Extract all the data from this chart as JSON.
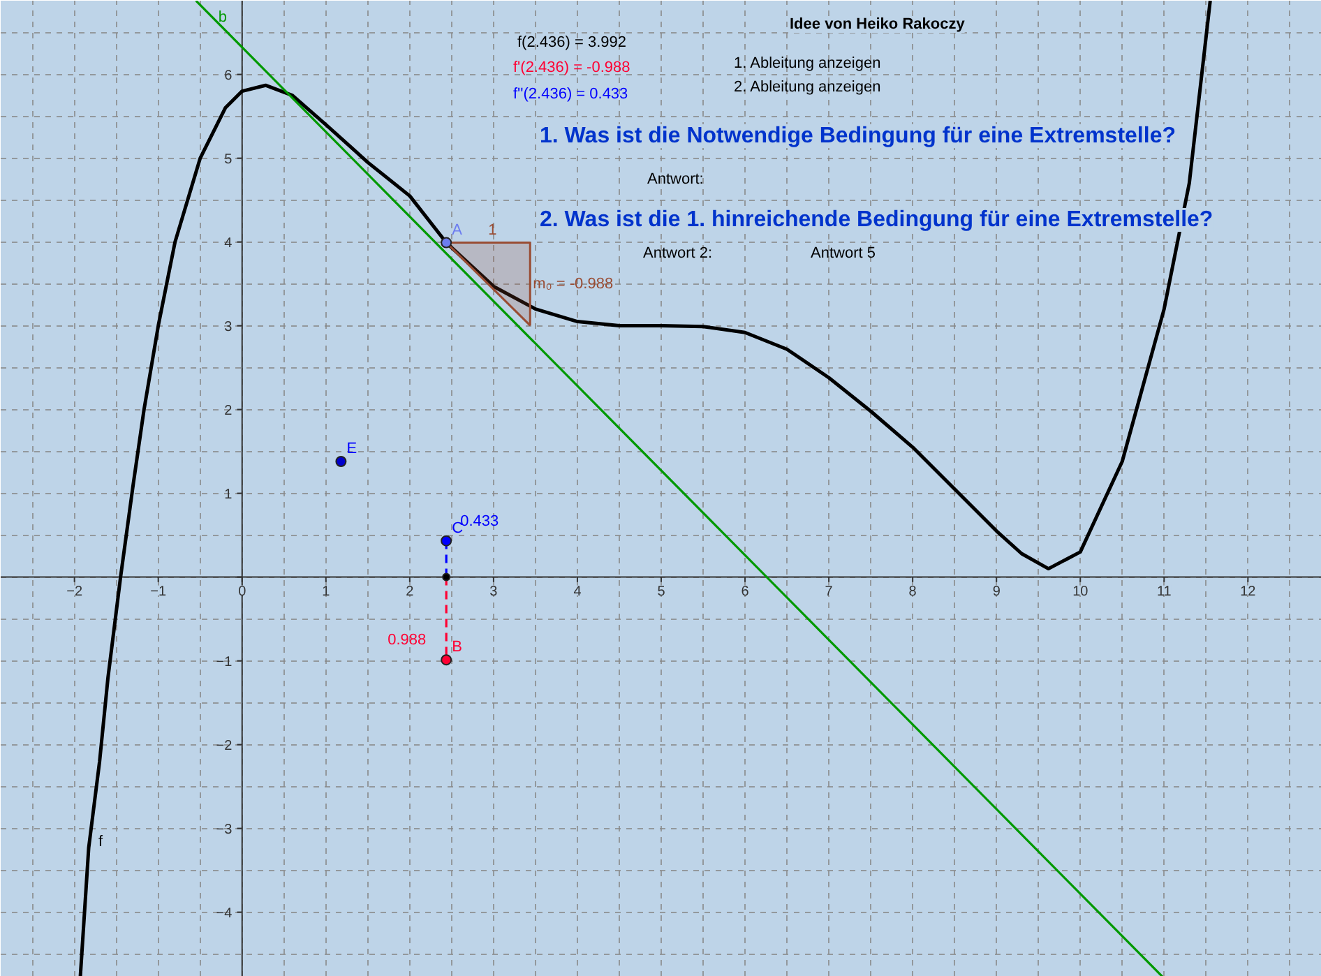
{
  "chart_data": {
    "type": "line",
    "xlim": [
      -2.88,
      12.88
    ],
    "ylim": [
      -4.77,
      6.88
    ],
    "xticks": [
      {
        "value": -2,
        "label": "−2"
      },
      {
        "value": -1,
        "label": "−1"
      },
      0,
      1,
      2,
      3,
      4,
      5,
      6,
      7,
      8,
      9,
      10,
      11,
      12
    ],
    "yticks": [
      {
        "value": -4,
        "label": "−4"
      },
      {
        "value": -3,
        "label": "−3"
      },
      {
        "value": -2,
        "label": "−2"
      },
      {
        "value": -1,
        "label": "−1"
      },
      {
        "value": 0,
        "label": null
      },
      1,
      2,
      3,
      4,
      5,
      6
    ],
    "grid": true,
    "series": [
      {
        "color": "#000000",
        "x": [
          -1.93,
          -1.83,
          -1.7,
          -1.6,
          -1.45,
          -1.3,
          -1.17,
          -1.0,
          -0.8,
          -0.5,
          -0.2,
          0.0,
          0.28,
          0.6,
          1.0,
          1.5,
          2.0,
          2.436,
          3.0,
          3.5,
          4.0,
          4.5,
          5.0,
          5.5,
          6.0,
          6.5,
          7.0,
          7.5,
          8.0,
          8.5,
          9.0,
          9.3,
          9.62,
          10.0,
          10.5,
          11.0,
          11.3,
          11.55
        ],
        "values": [
          -4.77,
          -3.23,
          -2.2,
          -1.2,
          0.0,
          1.1,
          2.0,
          3.0,
          4.0,
          5.0,
          5.6,
          5.8,
          5.87,
          5.75,
          5.4,
          4.95,
          4.55,
          3.992,
          3.47,
          3.2,
          3.05,
          3.0,
          3.0,
          2.99,
          2.92,
          2.72,
          2.38,
          1.98,
          1.55,
          1.05,
          0.55,
          0.28,
          0.1,
          0.3,
          1.38,
          3.2,
          4.7,
          6.88
        ]
      },
      {
        "type": "line",
        "color": "#009900",
        "x": [
          -0.55,
          10.98
        ],
        "values": [
          6.88,
          -4.77
        ]
      },
      {
        "type": "area",
        "color": "#994c33",
        "x": [
          2.436,
          3.436,
          3.436
        ],
        "values": [
          3.992,
          3.992,
          3.004
        ]
      },
      {
        "type": "line",
        "color": "#ff0033",
        "line_style": "dashed",
        "x": [
          2.436,
          2.436
        ],
        "values": [
          0,
          -0.988
        ]
      },
      {
        "type": "line",
        "color": "#0000ff",
        "line_style": "dashed",
        "x": [
          2.436,
          2.436
        ],
        "values": [
          0,
          0.433
        ]
      },
      {
        "type": "scatter",
        "color": "#6d7df0",
        "x": [
          2.436
        ],
        "values": [
          3.992
        ]
      },
      {
        "type": "scatter",
        "color": "#ff0033",
        "x": [
          2.436
        ],
        "values": [
          -0.988
        ]
      },
      {
        "type": "scatter",
        "color": "#0000ff",
        "x": [
          2.436
        ],
        "values": [
          0.433
        ]
      },
      {
        "type": "scatter",
        "color": "#0000cc",
        "x": [
          1.18
        ],
        "values": [
          1.38
        ]
      },
      {
        "type": "scatter",
        "color": "#000000",
        "x": [
          2.436
        ],
        "values": [
          0
        ]
      }
    ],
    "annotations": [
      "Idee von Heiko Rakoczy",
      "f(2.436) = 3.992",
      "f'(2.436) = -0.988",
      "f''(2.436) = 0.433",
      "1. Ableitung anzeigen",
      "2. Ableitung anzeigen",
      "1. Was ist die Notwendige Bedingung für eine Extremstelle?",
      "Antwort:",
      "2. Was ist die 1. hinreichende Bedingung für eine Extremstelle?",
      "Antwort 2:",
      "Antwort 5",
      {
        "text": "A",
        "x": 2.436,
        "y": 3.992
      },
      {
        "text": "B",
        "x": 2.436,
        "y": -0.988
      },
      {
        "text": "C",
        "x": 2.436,
        "y": 0.433
      },
      {
        "text": "E",
        "x": 1.18,
        "y": 1.38
      },
      {
        "text": "0.433",
        "x": 2.436,
        "y": 0.433
      },
      {
        "text": "0.988",
        "x": 2.436,
        "y": -0.988
      },
      {
        "text": "1",
        "x": 2.936,
        "y": 3.992
      },
      {
        "text": "m₀ = -0.988",
        "x": 3.436,
        "y": 3.5
      },
      {
        "text": "f",
        "x": -1.83,
        "y": -3.23
      },
      {
        "text": "b",
        "x": -0.55,
        "y": 6.88
      }
    ]
  }
}
